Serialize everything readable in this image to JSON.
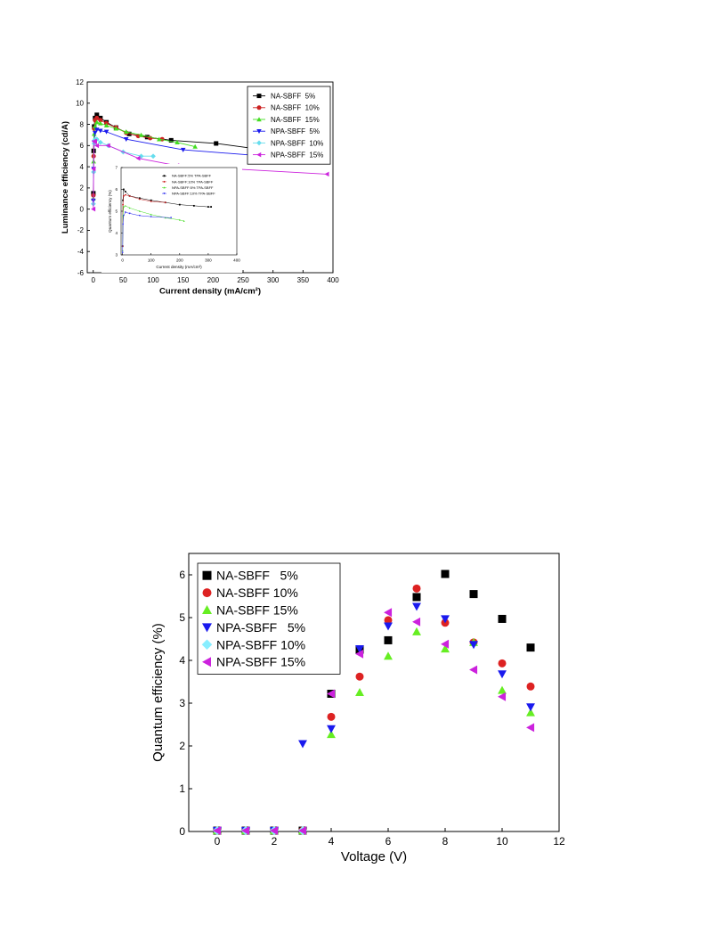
{
  "chart_data": [
    {
      "type": "line",
      "xlabel": "Current density (mA/cm²)",
      "ylabel": "Luminance efficiency (cd/A)",
      "xlim": [
        -10,
        400
      ],
      "ylim": [
        -6,
        12
      ],
      "xticks": [
        0,
        50,
        100,
        150,
        200,
        250,
        300,
        350,
        400
      ],
      "yticks": [
        -6,
        -4,
        -2,
        0,
        2,
        4,
        6,
        8,
        10,
        12
      ],
      "legend_position": "top-right",
      "series": [
        {
          "name": "NA-SBFF  5%",
          "color": "#000000",
          "marker": "square",
          "x": [
            0.2,
            0.6,
            1.5,
            3,
            6,
            12,
            22,
            38,
            60,
            90,
            130,
            205,
            310
          ],
          "y": [
            1.5,
            5.5,
            7.8,
            8.6,
            8.9,
            8.6,
            8.2,
            7.7,
            7.1,
            6.8,
            6.5,
            6.2,
            5.4
          ]
        },
        {
          "name": "NA-SBFF  10%",
          "color": "#cc2222",
          "marker": "circle",
          "x": [
            0.2,
            0.6,
            1.5,
            3,
            6,
            12,
            22,
            38,
            55,
            75,
            95,
            115
          ],
          "y": [
            1.3,
            5.0,
            7.6,
            8.4,
            8.6,
            8.4,
            8.1,
            7.7,
            7.2,
            6.9,
            6.7,
            6.6
          ]
        },
        {
          "name": "NA-SBFF  15%",
          "color": "#44dd22",
          "marker": "triangle-up",
          "x": [
            0.2,
            0.6,
            1.5,
            3,
            6,
            12,
            22,
            38,
            55,
            80,
            110,
            140,
            170
          ],
          "y": [
            1.0,
            4.5,
            7.1,
            7.8,
            8.2,
            8.1,
            7.9,
            7.6,
            7.3,
            7.0,
            6.6,
            6.3,
            5.9
          ]
        },
        {
          "name": "NPA-SBFF  5%",
          "color": "#1a1aee",
          "marker": "triangle-down",
          "x": [
            0.2,
            0.6,
            1.5,
            3,
            6,
            12,
            22,
            55,
            150,
            310
          ],
          "y": [
            0.8,
            3.8,
            6.3,
            7.2,
            7.5,
            7.4,
            7.3,
            6.6,
            5.6,
            4.9
          ]
        },
        {
          "name": "NPA-SBFF  10%",
          "color": "#66ddee",
          "marker": "diamond",
          "x": [
            0.2,
            0.6,
            1.5,
            3,
            6,
            12,
            25,
            50,
            80,
            100
          ],
          "y": [
            0.5,
            3.5,
            6.2,
            6.6,
            6.6,
            6.3,
            6.0,
            5.4,
            5.0,
            5.0
          ]
        },
        {
          "name": "NPA-SBFF  15%",
          "color": "#cc22dd",
          "marker": "triangle-left",
          "x": [
            0.2,
            0.6,
            1.5,
            3,
            6,
            25,
            75,
            140,
            390
          ],
          "y": [
            0.0,
            3.8,
            6.4,
            6.4,
            6.0,
            6.0,
            4.8,
            4.1,
            3.3
          ]
        }
      ],
      "inset": {
        "type": "line",
        "xlabel": "Current density (mA/cm²)",
        "ylabel": "Quantum efficiency (%)",
        "xlim": [
          -5,
          400
        ],
        "ylim": [
          3,
          7
        ],
        "xticks": [
          0,
          100,
          200,
          300,
          400
        ],
        "yticks": [
          3,
          4,
          5,
          6,
          7
        ],
        "legend_position": "top",
        "series": [
          {
            "name": "NA-SBFF:5% TPA-SBFF",
            "color": "#000000",
            "marker": "square",
            "x": [
              0.5,
              1.5,
              4,
              10,
              25,
              60,
              100,
              150,
              200,
              250,
              300,
              310
            ],
            "y": [
              3.4,
              5.5,
              6.0,
              5.9,
              5.7,
              5.6,
              5.5,
              5.4,
              5.3,
              5.25,
              5.2,
              5.2
            ]
          },
          {
            "name": "NA-SBFF:10% TPA-SBFF",
            "color": "#cc2222",
            "marker": "circle",
            "x": [
              0.5,
              1.5,
              4,
              10,
              25,
              60,
              100,
              150
            ],
            "y": [
              3.4,
              5.3,
              5.7,
              5.75,
              5.7,
              5.55,
              5.45,
              5.4
            ]
          },
          {
            "name": "NPA-SBFF:5% TPA-SBFF",
            "color": "#44dd22",
            "marker": "triangle-up",
            "x": [
              0.5,
              1.5,
              4,
              10,
              25,
              60,
              100,
              150,
              200,
              215
            ],
            "y": [
              3.2,
              4.8,
              5.2,
              5.25,
              5.15,
              5.0,
              4.85,
              4.7,
              4.6,
              4.55
            ]
          },
          {
            "name": "NPA-SBFF:10% TPA-SBFF",
            "color": "#1a1aee",
            "marker": "triangle-down",
            "x": [
              0.5,
              1.5,
              4,
              10,
              25,
              60,
              100,
              170
            ],
            "y": [
              3.1,
              4.4,
              4.8,
              4.95,
              4.9,
              4.8,
              4.75,
              4.7
            ]
          }
        ]
      }
    },
    {
      "type": "scatter",
      "xlabel": "Voltage (V)",
      "ylabel": "Quantum efficiency (%)",
      "xlim": [
        -1,
        12
      ],
      "ylim": [
        0,
        6.5
      ],
      "xticks": [
        0,
        2,
        4,
        6,
        8,
        10,
        12
      ],
      "yticks": [
        0,
        1,
        2,
        3,
        4,
        5,
        6
      ],
      "legend_position": "top-left",
      "series": [
        {
          "name": "NA-SBFF   5%",
          "color": "#000000",
          "marker": "square",
          "x": [
            0,
            1,
            2,
            3,
            4,
            5,
            6,
            7,
            8,
            9,
            10,
            11
          ],
          "y": [
            0.02,
            0.02,
            0.02,
            0.02,
            3.22,
            4.25,
            4.47,
            5.48,
            6.02,
            5.55,
            4.97,
            4.3
          ]
        },
        {
          "name": "NA-SBFF 10%",
          "color": "#dd2222",
          "marker": "circle",
          "x": [
            0,
            1,
            2,
            3,
            4,
            5,
            6,
            7,
            8,
            9,
            10,
            11
          ],
          "y": [
            0.02,
            0.02,
            0.02,
            0.02,
            2.68,
            3.62,
            4.94,
            5.68,
            4.88,
            4.42,
            3.93,
            3.39
          ]
        },
        {
          "name": "NA-SBFF 15%",
          "color": "#66ee22",
          "marker": "triangle-up",
          "x": [
            0,
            1,
            2,
            3,
            4,
            5,
            6,
            7,
            8,
            9,
            10,
            11
          ],
          "y": [
            0.02,
            0.02,
            0.02,
            0.02,
            2.27,
            3.25,
            4.1,
            4.67,
            4.27,
            4.42,
            3.3,
            2.78
          ]
        },
        {
          "name": "NPA-SBFF   5%",
          "color": "#1a1aee",
          "marker": "triangle-down",
          "x": [
            0,
            1,
            2,
            3,
            4,
            5,
            6,
            7,
            8,
            9,
            10,
            11
          ],
          "y": [
            0.02,
            0.02,
            0.02,
            2.05,
            2.4,
            4.27,
            4.8,
            5.26,
            4.97,
            4.37,
            3.68,
            2.91
          ]
        },
        {
          "name": "NPA-SBFF 10%",
          "color": "#88eeff",
          "marker": "diamond",
          "x": [
            0,
            1,
            2,
            3
          ],
          "y": [
            0.02,
            0.02,
            0.02,
            0.02
          ]
        },
        {
          "name": "NPA-SBFF 15%",
          "color": "#cc22dd",
          "marker": "triangle-left",
          "x": [
            0,
            1,
            2,
            3,
            4,
            5,
            6,
            7,
            8,
            9,
            10,
            11
          ],
          "y": [
            0.02,
            0.02,
            0.02,
            0.02,
            3.22,
            4.15,
            5.12,
            4.9,
            4.38,
            3.78,
            3.15,
            2.43
          ]
        }
      ]
    }
  ]
}
